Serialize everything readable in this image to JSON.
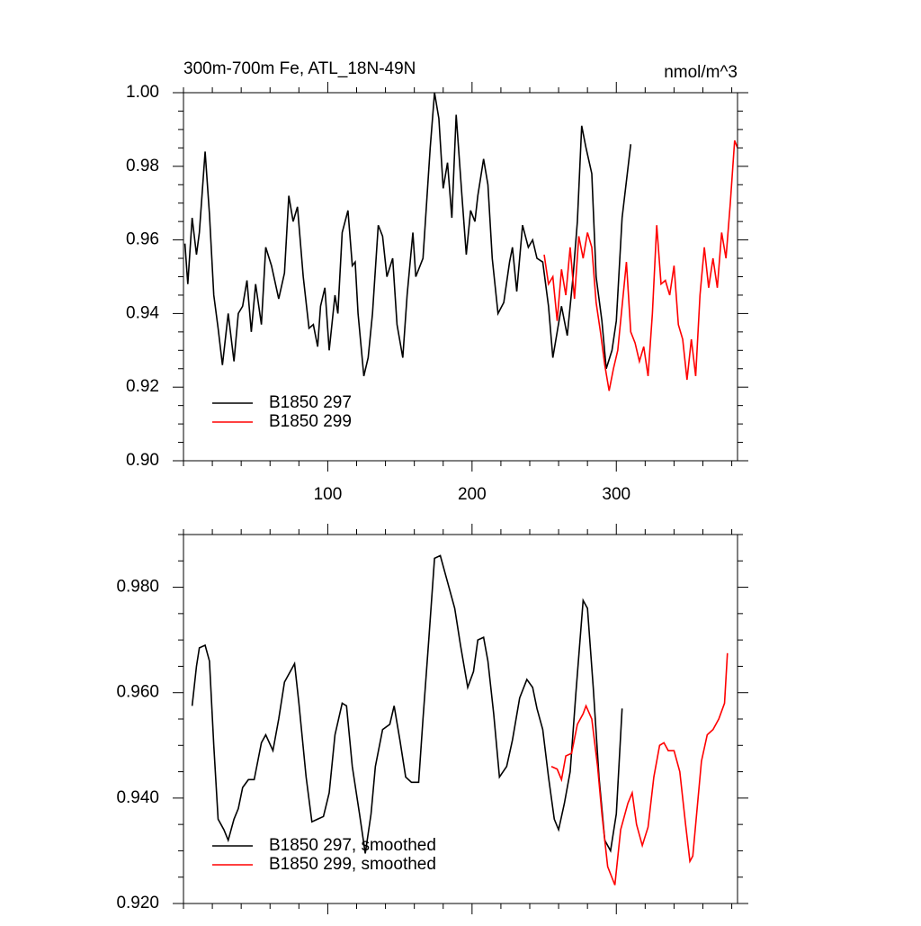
{
  "chart_data": [
    {
      "type": "line",
      "title": "300m-700m Fe, ATL_18N-49N",
      "units": "nmol/m^3",
      "xlim": [
        0,
        384
      ],
      "xticks": [
        100,
        200,
        300
      ],
      "show_xtick_labels": true,
      "ylim": [
        0.9,
        1.0
      ],
      "yticks": [
        {
          "value": 0.9,
          "label": "0.90"
        },
        0.92,
        0.94,
        0.96,
        0.98,
        {
          "value": 1.0,
          "label": "1.00"
        }
      ],
      "legend": "lower left",
      "series": [
        {
          "name": "B1850 297",
          "color": "#000000",
          "x": [
            1,
            3,
            6,
            9,
            11,
            15,
            18,
            21,
            24,
            27,
            31,
            35,
            38,
            41,
            44,
            47,
            50,
            54,
            57,
            61,
            66,
            70,
            73,
            76,
            79,
            83,
            87,
            90,
            93,
            95,
            98,
            101,
            105,
            107,
            110,
            114,
            117,
            119,
            121,
            125,
            128,
            131,
            135,
            138,
            141,
            145,
            148,
            152,
            155,
            159,
            161,
            166,
            171,
            174,
            177,
            180,
            183,
            186,
            189,
            193,
            196,
            199,
            202,
            204,
            208,
            211,
            214,
            218,
            222,
            226,
            228,
            231,
            235,
            239,
            242,
            245,
            249,
            253,
            256,
            259,
            262,
            266,
            270,
            273,
            276,
            279,
            283,
            286,
            290,
            293,
            297,
            300,
            304,
            310
          ],
          "values": [
            0.959,
            0.948,
            0.966,
            0.956,
            0.962,
            0.984,
            0.967,
            0.945,
            0.936,
            0.926,
            0.94,
            0.927,
            0.94,
            0.942,
            0.949,
            0.935,
            0.948,
            0.937,
            0.958,
            0.953,
            0.944,
            0.951,
            0.972,
            0.965,
            0.969,
            0.95,
            0.936,
            0.937,
            0.931,
            0.942,
            0.947,
            0.93,
            0.945,
            0.94,
            0.962,
            0.968,
            0.953,
            0.954,
            0.94,
            0.923,
            0.928,
            0.94,
            0.964,
            0.961,
            0.95,
            0.955,
            0.937,
            0.928,
            0.945,
            0.962,
            0.95,
            0.955,
            0.985,
            1.0,
            0.993,
            0.974,
            0.981,
            0.966,
            0.994,
            0.972,
            0.956,
            0.968,
            0.965,
            0.972,
            0.982,
            0.975,
            0.955,
            0.94,
            0.943,
            0.954,
            0.958,
            0.946,
            0.964,
            0.958,
            0.96,
            0.955,
            0.954,
            0.942,
            0.928,
            0.935,
            0.942,
            0.934,
            0.95,
            0.965,
            0.991,
            0.985,
            0.978,
            0.95,
            0.938,
            0.925,
            0.93,
            0.938,
            0.966,
            0.986
          ]
        },
        {
          "name": "B1850 299",
          "color": "#ff0000",
          "x": [
            250,
            253,
            256,
            259,
            262,
            265,
            268,
            271,
            274,
            277,
            280,
            283,
            286,
            289,
            292,
            295,
            298,
            301,
            304,
            307,
            310,
            313,
            316,
            319,
            322,
            325,
            328,
            331,
            334,
            337,
            340,
            343,
            346,
            349,
            352,
            355,
            358,
            361,
            364,
            367,
            370,
            373,
            376,
            379,
            382,
            384
          ],
          "values": [
            0.956,
            0.948,
            0.95,
            0.938,
            0.952,
            0.945,
            0.958,
            0.944,
            0.961,
            0.955,
            0.962,
            0.958,
            0.943,
            0.935,
            0.926,
            0.919,
            0.925,
            0.93,
            0.942,
            0.954,
            0.935,
            0.932,
            0.927,
            0.931,
            0.923,
            0.94,
            0.964,
            0.948,
            0.949,
            0.945,
            0.953,
            0.937,
            0.933,
            0.922,
            0.933,
            0.923,
            0.945,
            0.958,
            0.947,
            0.955,
            0.947,
            0.962,
            0.955,
            0.97,
            0.987,
            0.985
          ]
        }
      ]
    },
    {
      "type": "line",
      "xlim": [
        0,
        384
      ],
      "xticks": [
        100,
        200,
        300
      ],
      "show_xtick_labels": false,
      "ylim": [
        0.92,
        0.99
      ],
      "yticks": [
        {
          "value": 0.92,
          "label": "0.920"
        },
        {
          "value": 0.94,
          "label": "0.940"
        },
        {
          "value": 0.96,
          "label": "0.960"
        },
        {
          "value": 0.98,
          "label": "0.980"
        }
      ],
      "legend": "lower left",
      "series": [
        {
          "name": "B1850 297, smoothed",
          "color": "#000000",
          "x": [
            6,
            9,
            11,
            15,
            18,
            21,
            24,
            28,
            31,
            35,
            38,
            41,
            45,
            49,
            54,
            57,
            62,
            66,
            70,
            77,
            80,
            85,
            89,
            93,
            97,
            101,
            105,
            110,
            113,
            117,
            122,
            126,
            130,
            133,
            138,
            143,
            146,
            150,
            154,
            158,
            163,
            166,
            170,
            174,
            178,
            183,
            188,
            192,
            197,
            201,
            204,
            208,
            211,
            215,
            219,
            224,
            228,
            233,
            238,
            242,
            245,
            249,
            253,
            257,
            260,
            264,
            268,
            272,
            277,
            280,
            284,
            288,
            292,
            296,
            300,
            304
          ],
          "values": [
            0.9575,
            0.965,
            0.9685,
            0.969,
            0.966,
            0.95,
            0.936,
            0.934,
            0.932,
            0.936,
            0.938,
            0.942,
            0.9435,
            0.9435,
            0.9505,
            0.952,
            0.949,
            0.955,
            0.962,
            0.9655,
            0.958,
            0.944,
            0.9355,
            0.936,
            0.9365,
            0.941,
            0.952,
            0.958,
            0.9575,
            0.946,
            0.937,
            0.9295,
            0.937,
            0.946,
            0.953,
            0.954,
            0.9575,
            0.951,
            0.944,
            0.943,
            0.943,
            0.955,
            0.97,
            0.9855,
            0.986,
            0.981,
            0.976,
            0.969,
            0.961,
            0.964,
            0.97,
            0.9705,
            0.966,
            0.956,
            0.944,
            0.946,
            0.951,
            0.959,
            0.9625,
            0.961,
            0.957,
            0.953,
            0.944,
            0.936,
            0.934,
            0.939,
            0.945,
            0.96,
            0.9775,
            0.976,
            0.961,
            0.944,
            0.932,
            0.93,
            0.937,
            0.957
          ]
        },
        {
          "name": "B1850 299, smoothed",
          "color": "#ff0000",
          "x": [
            255,
            259,
            262,
            265,
            269,
            273,
            277,
            279,
            283,
            287,
            290,
            294,
            299,
            303,
            308,
            311,
            314,
            318,
            322,
            326,
            330,
            333,
            336,
            340,
            344,
            348,
            351,
            353,
            356,
            359,
            363,
            367,
            371,
            375,
            377
          ],
          "values": [
            0.946,
            0.9455,
            0.9435,
            0.948,
            0.9485,
            0.954,
            0.956,
            0.9575,
            0.955,
            0.946,
            0.937,
            0.927,
            0.9235,
            0.934,
            0.939,
            0.941,
            0.935,
            0.931,
            0.9345,
            0.944,
            0.95,
            0.9505,
            0.949,
            0.949,
            0.945,
            0.935,
            0.928,
            0.929,
            0.938,
            0.947,
            0.952,
            0.953,
            0.955,
            0.958,
            0.9675
          ]
        }
      ]
    }
  ]
}
